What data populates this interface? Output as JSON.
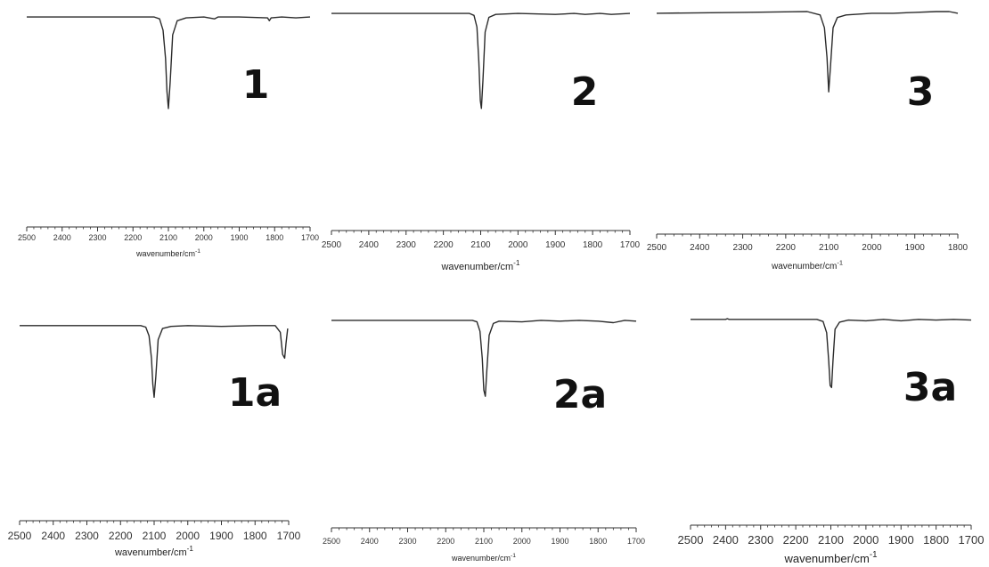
{
  "chart_data": [
    {
      "type": "line",
      "panel_label": "1",
      "xlabel_base": "wavenumber/cm",
      "xlabel_exp": "-1",
      "xlim": [
        2500,
        1700
      ],
      "xticks": [
        2500,
        2400,
        2300,
        2200,
        2100,
        2000,
        1900,
        1800,
        1700
      ],
      "grid": false,
      "series": [
        {
          "x": [
            2500,
            2300,
            2140,
            2125,
            2115,
            2108,
            2104,
            2100,
            2095,
            2088,
            2075,
            2050,
            2000,
            1970,
            1960,
            1900,
            1820,
            1815,
            1810,
            1780,
            1740,
            1700
          ],
          "y": [
            0.99,
            0.99,
            0.99,
            0.97,
            0.85,
            0.55,
            0.2,
            0.02,
            0.3,
            0.8,
            0.95,
            0.98,
            0.99,
            0.97,
            0.99,
            0.99,
            0.98,
            0.95,
            0.98,
            0.99,
            0.98,
            0.99
          ]
        }
      ]
    },
    {
      "type": "line",
      "panel_label": "2",
      "xlabel_base": "wavenumber/cm",
      "xlabel_exp": "-1",
      "xlim": [
        2500,
        1700
      ],
      "xticks": [
        2500,
        2400,
        2300,
        2200,
        2100,
        2000,
        1900,
        1800,
        1700
      ],
      "grid": false,
      "series": [
        {
          "x": [
            2500,
            2300,
            2130,
            2118,
            2110,
            2105,
            2101,
            2098,
            2094,
            2088,
            2078,
            2060,
            2000,
            1900,
            1850,
            1820,
            1780,
            1750,
            1700
          ],
          "y": [
            0.99,
            0.99,
            0.99,
            0.97,
            0.85,
            0.5,
            0.1,
            0.02,
            0.3,
            0.8,
            0.95,
            0.98,
            0.99,
            0.98,
            0.99,
            0.98,
            0.99,
            0.98,
            0.99
          ]
        }
      ]
    },
    {
      "type": "line",
      "panel_label": "3",
      "xlabel_base": "wavenumber/cm",
      "xlabel_exp": "-1",
      "xlim": [
        2500,
        1800
      ],
      "xticks": [
        2500,
        2400,
        2300,
        2200,
        2100,
        2000,
        1900,
        1800
      ],
      "grid": false,
      "series": [
        {
          "x": [
            2500,
            2300,
            2150,
            2120,
            2110,
            2104,
            2100,
            2096,
            2090,
            2080,
            2060,
            2000,
            1950,
            1900,
            1850,
            1820,
            1800
          ],
          "y": [
            0.97,
            0.98,
            0.99,
            0.95,
            0.8,
            0.45,
            0.05,
            0.35,
            0.8,
            0.92,
            0.95,
            0.97,
            0.97,
            0.98,
            0.99,
            0.99,
            0.97
          ]
        }
      ]
    },
    {
      "type": "line",
      "panel_label": "1a",
      "xlabel_base": "wavenumber/cm",
      "xlabel_exp": "-1",
      "xlim": [
        2500,
        1700
      ],
      "xticks": [
        2500,
        2400,
        2300,
        2200,
        2100,
        2000,
        1900,
        1800,
        1700
      ],
      "grid": false,
      "series": [
        {
          "x": [
            2500,
            2300,
            2140,
            2125,
            2115,
            2108,
            2104,
            2100,
            2095,
            2088,
            2075,
            2050,
            2000,
            1900,
            1800,
            1740,
            1725,
            1718,
            1712,
            1708,
            1703
          ],
          "y": [
            0.99,
            0.99,
            0.99,
            0.97,
            0.85,
            0.55,
            0.2,
            0.02,
            0.3,
            0.8,
            0.95,
            0.98,
            0.99,
            0.98,
            0.99,
            0.99,
            0.9,
            0.6,
            0.55,
            0.75,
            0.95
          ]
        }
      ]
    },
    {
      "type": "line",
      "panel_label": "2a",
      "xlabel_base": "wavenumber/cm",
      "xlabel_exp": "-1",
      "xlim": [
        2500,
        1700
      ],
      "xticks": [
        2500,
        2400,
        2300,
        2200,
        2100,
        2000,
        1900,
        1800,
        1700
      ],
      "grid": false,
      "series": [
        {
          "x": [
            2500,
            2300,
            2130,
            2118,
            2110,
            2104,
            2100,
            2096,
            2092,
            2086,
            2075,
            2060,
            2000,
            1950,
            1900,
            1850,
            1800,
            1760,
            1730,
            1700
          ],
          "y": [
            0.99,
            0.99,
            0.99,
            0.97,
            0.85,
            0.5,
            0.1,
            0.02,
            0.35,
            0.8,
            0.95,
            0.98,
            0.97,
            0.99,
            0.98,
            0.99,
            0.98,
            0.96,
            0.99,
            0.98
          ]
        }
      ]
    },
    {
      "type": "line",
      "panel_label": "3a",
      "xlabel_base": "wavenumber/cm",
      "xlabel_exp": "-1",
      "xlim": [
        2500,
        1700
      ],
      "xticks": [
        2500,
        2400,
        2300,
        2200,
        2100,
        2000,
        1900,
        1800,
        1700
      ],
      "grid": false,
      "series": [
        {
          "x": [
            2500,
            2400,
            2395,
            2390,
            2300,
            2140,
            2122,
            2112,
            2106,
            2102,
            2098,
            2094,
            2088,
            2075,
            2050,
            2000,
            1950,
            1900,
            1850,
            1800,
            1750,
            1700
          ],
          "y": [
            0.99,
            0.99,
            1.0,
            0.99,
            0.99,
            0.99,
            0.96,
            0.8,
            0.4,
            0.05,
            0.02,
            0.4,
            0.85,
            0.95,
            0.98,
            0.97,
            0.99,
            0.97,
            0.99,
            0.98,
            0.99,
            0.98
          ]
        }
      ]
    }
  ]
}
